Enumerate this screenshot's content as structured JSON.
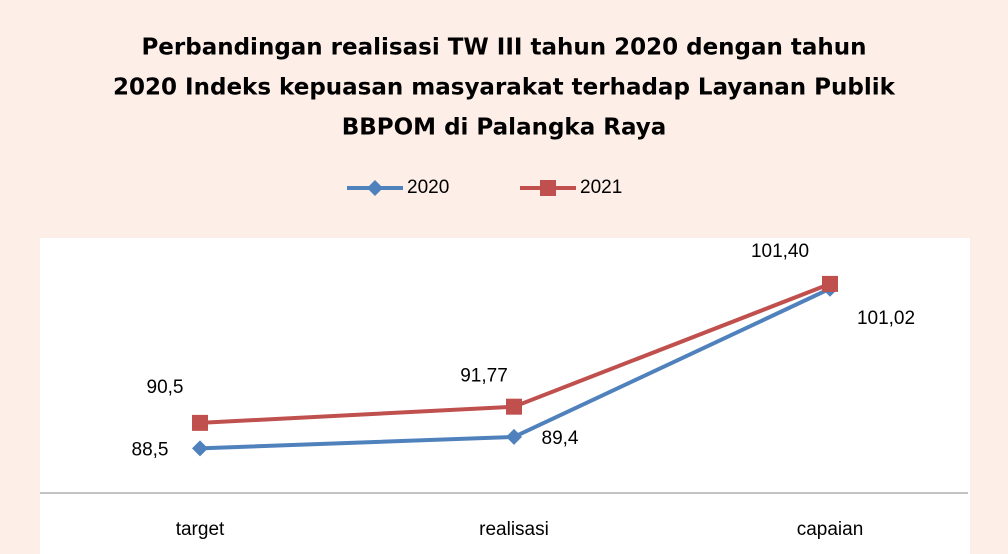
{
  "chart_data": {
    "type": "line",
    "title": [
      "Perbandingan realisasi TW III tahun 2020 dengan tahun",
      "2020 Indeks kepuasan masyarakat terhadap Layanan Publik",
      "BBPOM di Palangka Raya"
    ],
    "categories": [
      "target",
      "realisasi",
      "capaian"
    ],
    "series": [
      {
        "name": "2020",
        "color": "#4f81bd",
        "marker": "diamond",
        "values": [
          88.5,
          89.4,
          101.02
        ],
        "value_labels": [
          "88,5",
          "89,4",
          "101,02"
        ]
      },
      {
        "name": "2021",
        "color": "#c0504d",
        "marker": "square",
        "values": [
          90.5,
          91.77,
          101.4
        ],
        "value_labels": [
          "90,5",
          "91,77",
          "101,40"
        ]
      }
    ],
    "ylim": [
      85,
      105
    ],
    "legend": "top"
  }
}
